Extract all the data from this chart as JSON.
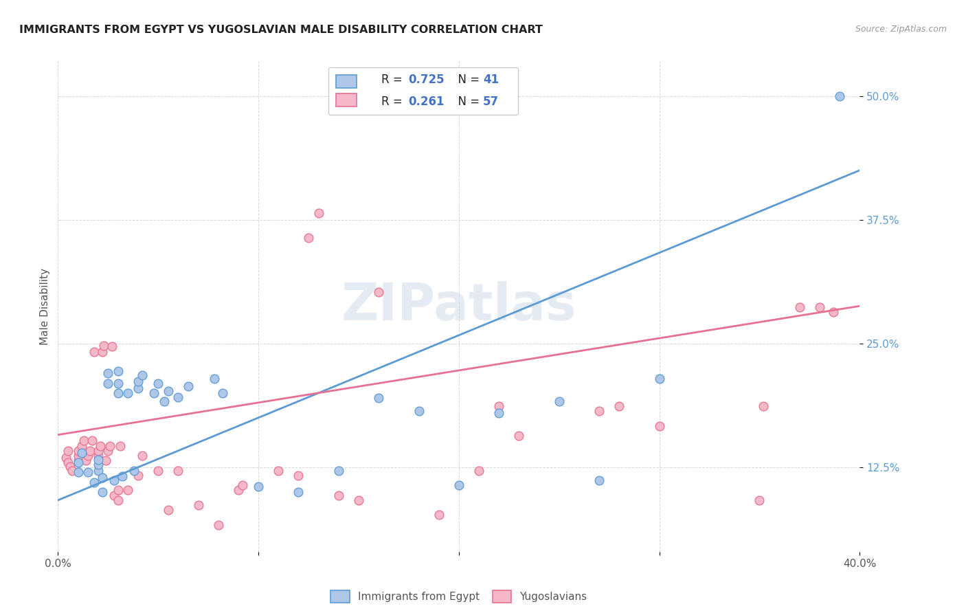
{
  "title": "IMMIGRANTS FROM EGYPT VS YUGOSLAVIAN MALE DISABILITY CORRELATION CHART",
  "source": "Source: ZipAtlas.com",
  "ylabel": "Male Disability",
  "watermark": "ZIPatlas",
  "x_min": 0.0,
  "x_max": 0.4,
  "y_min": 0.04,
  "y_max": 0.535,
  "y_ticks": [
    0.125,
    0.25,
    0.375,
    0.5
  ],
  "y_tick_labels": [
    "12.5%",
    "25.0%",
    "37.5%",
    "50.0%"
  ],
  "blue_R": 0.725,
  "blue_N": 41,
  "pink_R": 0.261,
  "pink_N": 57,
  "blue_color": "#aec6e8",
  "pink_color": "#f4b8c8",
  "blue_line_color": "#5b9bd5",
  "pink_line_color": "#e87090",
  "legend_R_color": "#4472c4",
  "blue_scatter": [
    [
      0.01,
      0.13
    ],
    [
      0.01,
      0.12
    ],
    [
      0.012,
      0.14
    ],
    [
      0.015,
      0.12
    ],
    [
      0.018,
      0.11
    ],
    [
      0.02,
      0.122
    ],
    [
      0.02,
      0.128
    ],
    [
      0.02,
      0.133
    ],
    [
      0.022,
      0.115
    ],
    [
      0.022,
      0.1
    ],
    [
      0.025,
      0.21
    ],
    [
      0.025,
      0.22
    ],
    [
      0.028,
      0.112
    ],
    [
      0.03,
      0.21
    ],
    [
      0.03,
      0.222
    ],
    [
      0.03,
      0.2
    ],
    [
      0.032,
      0.116
    ],
    [
      0.035,
      0.2
    ],
    [
      0.038,
      0.122
    ],
    [
      0.04,
      0.205
    ],
    [
      0.04,
      0.212
    ],
    [
      0.042,
      0.218
    ],
    [
      0.048,
      0.2
    ],
    [
      0.05,
      0.21
    ],
    [
      0.053,
      0.192
    ],
    [
      0.055,
      0.202
    ],
    [
      0.06,
      0.196
    ],
    [
      0.065,
      0.207
    ],
    [
      0.078,
      0.215
    ],
    [
      0.082,
      0.2
    ],
    [
      0.1,
      0.106
    ],
    [
      0.12,
      0.1
    ],
    [
      0.14,
      0.122
    ],
    [
      0.2,
      0.107
    ],
    [
      0.27,
      0.112
    ],
    [
      0.39,
      0.5
    ],
    [
      0.3,
      0.215
    ],
    [
      0.16,
      0.195
    ],
    [
      0.18,
      0.182
    ],
    [
      0.22,
      0.18
    ],
    [
      0.25,
      0.192
    ]
  ],
  "pink_scatter": [
    [
      0.004,
      0.135
    ],
    [
      0.005,
      0.13
    ],
    [
      0.005,
      0.142
    ],
    [
      0.006,
      0.126
    ],
    [
      0.007,
      0.122
    ],
    [
      0.01,
      0.132
    ],
    [
      0.01,
      0.137
    ],
    [
      0.01,
      0.142
    ],
    [
      0.012,
      0.147
    ],
    [
      0.013,
      0.152
    ],
    [
      0.014,
      0.132
    ],
    [
      0.015,
      0.137
    ],
    [
      0.016,
      0.142
    ],
    [
      0.017,
      0.152
    ],
    [
      0.018,
      0.242
    ],
    [
      0.02,
      0.137
    ],
    [
      0.02,
      0.142
    ],
    [
      0.021,
      0.147
    ],
    [
      0.022,
      0.242
    ],
    [
      0.023,
      0.248
    ],
    [
      0.024,
      0.132
    ],
    [
      0.025,
      0.142
    ],
    [
      0.026,
      0.147
    ],
    [
      0.027,
      0.247
    ],
    [
      0.028,
      0.097
    ],
    [
      0.03,
      0.092
    ],
    [
      0.03,
      0.102
    ],
    [
      0.031,
      0.147
    ],
    [
      0.035,
      0.102
    ],
    [
      0.04,
      0.117
    ],
    [
      0.042,
      0.137
    ],
    [
      0.05,
      0.122
    ],
    [
      0.055,
      0.082
    ],
    [
      0.06,
      0.122
    ],
    [
      0.07,
      0.087
    ],
    [
      0.08,
      0.067
    ],
    [
      0.09,
      0.102
    ],
    [
      0.092,
      0.107
    ],
    [
      0.11,
      0.122
    ],
    [
      0.12,
      0.117
    ],
    [
      0.125,
      0.357
    ],
    [
      0.13,
      0.382
    ],
    [
      0.14,
      0.097
    ],
    [
      0.15,
      0.092
    ],
    [
      0.16,
      0.302
    ],
    [
      0.19,
      0.077
    ],
    [
      0.21,
      0.122
    ],
    [
      0.22,
      0.187
    ],
    [
      0.23,
      0.157
    ],
    [
      0.27,
      0.182
    ],
    [
      0.28,
      0.187
    ],
    [
      0.3,
      0.167
    ],
    [
      0.35,
      0.092
    ],
    [
      0.352,
      0.187
    ],
    [
      0.37,
      0.287
    ],
    [
      0.38,
      0.287
    ],
    [
      0.387,
      0.282
    ]
  ],
  "blue_line": [
    [
      0.0,
      0.092
    ],
    [
      0.4,
      0.425
    ]
  ],
  "pink_line": [
    [
      0.0,
      0.158
    ],
    [
      0.4,
      0.288
    ]
  ],
  "grid_color": "#d8d8d8",
  "background_color": "#ffffff",
  "legend_label_blue": "Immigrants from Egypt",
  "legend_label_pink": "Yugoslavians"
}
